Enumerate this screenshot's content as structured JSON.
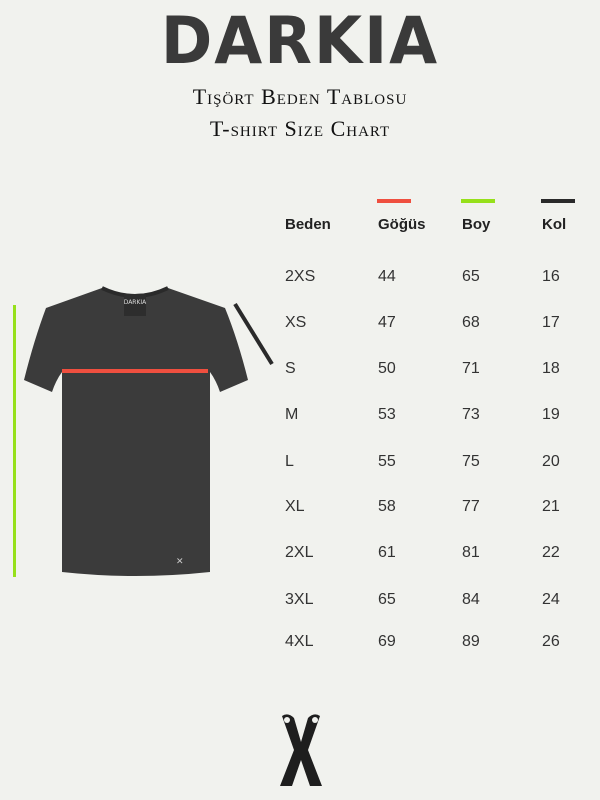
{
  "brand": "DARKIA",
  "title_tr": "Tişört Beden Tablosu",
  "title_en": "T-shirt Size Chart",
  "shirt_label": "DARKIA",
  "colors": {
    "gogus": "#ef4f3f",
    "boy": "#96e01a",
    "kol": "#2a2a2a",
    "shirt": "#3b3b3b"
  },
  "columns": [
    "Beden",
    "Göğüs",
    "Boy",
    "Kol"
  ],
  "rows": [
    [
      "2XS",
      "44",
      "65",
      "16"
    ],
    [
      "XS",
      "47",
      "68",
      "17"
    ],
    [
      "S",
      "50",
      "71",
      "18"
    ],
    [
      "M",
      "53",
      "73",
      "19"
    ],
    [
      "L",
      "55",
      "75",
      "20"
    ],
    [
      "XL",
      "58",
      "77",
      "21"
    ],
    [
      "2XL",
      "61",
      "81",
      "22"
    ],
    [
      "3XL",
      "65",
      "84",
      "24"
    ],
    [
      "4XL",
      "69",
      "89",
      "26"
    ]
  ],
  "icons": {
    "bottom_logo": "x-logo-icon"
  }
}
